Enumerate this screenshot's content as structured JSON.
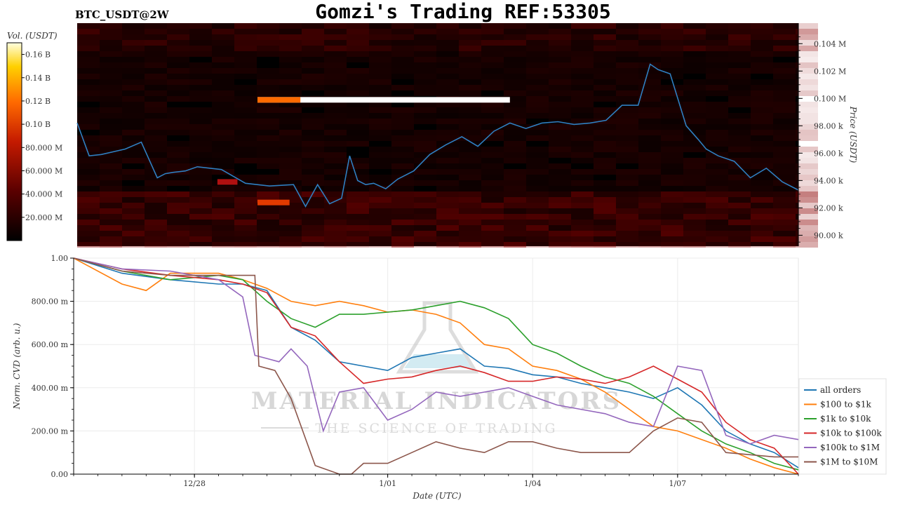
{
  "header": {
    "title": "Gomzi's Trading REF:53305",
    "symbol": "BTC_USDT@2W"
  },
  "watermark": {
    "line1": "MATERIAL INDICATORS",
    "line2": "THE SCIENCE OF TRADING"
  },
  "colors": {
    "price_line": "#2f7fc1",
    "heatmap_dark": "#000000",
    "heatmap_red": "#8b0000",
    "heatmap_hot": "#ff6a00",
    "heatmap_max": "#ffffff"
  },
  "chart_data": [
    {
      "type": "heatmap",
      "title": "",
      "colorbar_label": "Vol. (USDT)",
      "colorbar_ticks": [
        "20.000 M",
        "40.000 M",
        "60.000 M",
        "80.000 M",
        "0.10 B",
        "0.12 B",
        "0.14 B",
        "0.16 B"
      ],
      "colorbar_values": [
        20000000,
        40000000,
        60000000,
        80000000,
        100000000,
        120000000,
        140000000,
        160000000
      ],
      "colorbar_range": [
        0,
        170000000
      ],
      "ylabel": "Price (USDT)",
      "y_ticks": [
        "90.00 k",
        "92.00 k",
        "94.00 k",
        "96.00 k",
        "98.00 k",
        "0.100 M",
        "0.102 M",
        "0.104 M"
      ],
      "y_tick_values": [
        90000,
        92000,
        94000,
        96000,
        98000,
        100000,
        102000,
        104000
      ],
      "ylim": [
        89200,
        105500
      ],
      "xlim": [
        "2024-12-25T12:00",
        "2025-01-09T12:00"
      ],
      "price_series": {
        "x": [
          "2024-12-25T12:00",
          "2024-12-25T18:00",
          "2024-12-26T00:00",
          "2024-12-26T12:00",
          "2024-12-26T20:00",
          "2024-12-27T04:00",
          "2024-12-27T08:00",
          "2024-12-27T12:00",
          "2024-12-27T18:00",
          "2024-12-28T00:00",
          "2024-12-28T12:00",
          "2024-12-29T00:00",
          "2024-12-29T12:00",
          "2024-12-30T00:00",
          "2024-12-30T06:00",
          "2024-12-30T12:00",
          "2024-12-30T18:00",
          "2024-12-31T00:00",
          "2024-12-31T04:00",
          "2024-12-31T08:00",
          "2024-12-31T12:00",
          "2024-12-31T16:00",
          "2024-12-31T22:00",
          "2025-01-01T04:00",
          "2025-01-01T12:00",
          "2025-01-01T20:00",
          "2025-01-02T04:00",
          "2025-01-02T12:00",
          "2025-01-02T20:00",
          "2025-01-03T04:00",
          "2025-01-03T12:00",
          "2025-01-03T20:00",
          "2025-01-04T04:00",
          "2025-01-04T12:00",
          "2025-01-04T20:00",
          "2025-01-05T04:00",
          "2025-01-05T12:00",
          "2025-01-05T20:00",
          "2025-01-06T04:00",
          "2025-01-06T10:00",
          "2025-01-06T14:00",
          "2025-01-06T20:00",
          "2025-01-07T04:00",
          "2025-01-07T10:00",
          "2025-01-07T14:00",
          "2025-01-07T20:00",
          "2025-01-08T04:00",
          "2025-01-08T12:00",
          "2025-01-08T20:00",
          "2025-01-09T04:00",
          "2025-01-09T12:00"
        ],
        "y": [
          98200,
          95800,
          95900,
          96300,
          96800,
          94200,
          94500,
          94600,
          94700,
          95000,
          94800,
          93800,
          93600,
          93700,
          92100,
          93700,
          92300,
          92700,
          95800,
          94000,
          93700,
          93800,
          93400,
          94100,
          94700,
          95900,
          96600,
          97200,
          96500,
          97600,
          98200,
          97800,
          98200,
          98300,
          98100,
          98200,
          98400,
          99500,
          99500,
          102500,
          102100,
          101800,
          98000,
          97000,
          96300,
          95800,
          95400,
          94200,
          94900,
          93900,
          93300
        ]
      },
      "heat_bands": [
        {
          "price_low": 99900,
          "price_high": 100100,
          "x_start": "2024-12-29T06:00",
          "x_end": "2025-01-03T12:00",
          "intensity": 1.0
        },
        {
          "price_low": 92400,
          "price_high": 92600,
          "x_start": "2024-12-29T06:00",
          "x_end": "2024-12-29T22:00",
          "intensity": 0.55
        },
        {
          "price_low": 93900,
          "price_high": 94100,
          "x_start": "2024-12-28T10:00",
          "x_end": "2024-12-28T20:00",
          "intensity": 0.4
        }
      ]
    },
    {
      "type": "line",
      "title": "",
      "xlabel": "Date (UTC)",
      "ylabel": "Norm. CVD (arb. u.)",
      "x_ticks": [
        "12/28",
        "1/01",
        "1/04",
        "1/07"
      ],
      "x_tick_values": [
        "2024-12-28T00:00",
        "2025-01-01T00:00",
        "2025-01-04T00:00",
        "2025-01-07T00:00"
      ],
      "y_ticks": [
        "0.00",
        "200.00 m",
        "400.00 m",
        "600.00 m",
        "800.00 m",
        "1.00"
      ],
      "y_tick_values": [
        0,
        0.2,
        0.4,
        0.6,
        0.8,
        1.0
      ],
      "ylim": [
        0,
        1.0
      ],
      "xlim": [
        "2024-12-25T12:00",
        "2025-01-09T12:00"
      ],
      "grid": true,
      "legend": "right",
      "series": [
        {
          "name": "all orders",
          "color": "#1f77b4",
          "x": [
            "2024-12-25T12:00",
            "2024-12-26T12:00",
            "2024-12-27T12:00",
            "2024-12-28T12:00",
            "2024-12-29T00:00",
            "2024-12-29T12:00",
            "2024-12-30T00:00",
            "2024-12-30T12:00",
            "2024-12-31T00:00",
            "2024-12-31T12:00",
            "2025-01-01T00:00",
            "2025-01-01T12:00",
            "2025-01-02T00:00",
            "2025-01-02T12:00",
            "2025-01-03T00:00",
            "2025-01-03T12:00",
            "2025-01-04T00:00",
            "2025-01-04T12:00",
            "2025-01-05T00:00",
            "2025-01-05T12:00",
            "2025-01-06T00:00",
            "2025-01-06T12:00",
            "2025-01-07T00:00",
            "2025-01-07T12:00",
            "2025-01-08T00:00",
            "2025-01-08T12:00",
            "2025-01-09T00:00",
            "2025-01-09T12:00"
          ],
          "y": [
            1.0,
            0.93,
            0.9,
            0.88,
            0.88,
            0.85,
            0.68,
            0.62,
            0.52,
            0.5,
            0.48,
            0.54,
            0.56,
            0.58,
            0.5,
            0.49,
            0.46,
            0.45,
            0.42,
            0.4,
            0.38,
            0.35,
            0.4,
            0.32,
            0.2,
            0.14,
            0.1,
            0.03
          ]
        },
        {
          "name": "$100 to $1k",
          "color": "#ff7f0e",
          "x": [
            "2024-12-25T12:00",
            "2024-12-26T12:00",
            "2024-12-27T00:00",
            "2024-12-27T12:00",
            "2024-12-28T12:00",
            "2024-12-29T00:00",
            "2024-12-29T12:00",
            "2024-12-30T00:00",
            "2024-12-30T12:00",
            "2024-12-31T00:00",
            "2024-12-31T12:00",
            "2025-01-01T00:00",
            "2025-01-01T12:00",
            "2025-01-02T00:00",
            "2025-01-02T12:00",
            "2025-01-03T00:00",
            "2025-01-03T12:00",
            "2025-01-04T00:00",
            "2025-01-04T12:00",
            "2025-01-05T00:00",
            "2025-01-05T12:00",
            "2025-01-06T00:00",
            "2025-01-06T12:00",
            "2025-01-07T00:00",
            "2025-01-07T12:00",
            "2025-01-08T00:00",
            "2025-01-08T12:00",
            "2025-01-09T00:00",
            "2025-01-09T12:00"
          ],
          "y": [
            1.0,
            0.88,
            0.85,
            0.93,
            0.93,
            0.9,
            0.86,
            0.8,
            0.78,
            0.8,
            0.78,
            0.75,
            0.76,
            0.74,
            0.7,
            0.6,
            0.58,
            0.5,
            0.48,
            0.44,
            0.38,
            0.3,
            0.22,
            0.2,
            0.16,
            0.12,
            0.07,
            0.03,
            0.0
          ]
        },
        {
          "name": "$1k to $10k",
          "color": "#2ca02c",
          "x": [
            "2024-12-25T12:00",
            "2024-12-26T12:00",
            "2024-12-27T12:00",
            "2024-12-28T12:00",
            "2024-12-29T00:00",
            "2024-12-29T12:00",
            "2024-12-30T00:00",
            "2024-12-30T12:00",
            "2024-12-31T00:00",
            "2024-12-31T12:00",
            "2025-01-01T00:00",
            "2025-01-01T12:00",
            "2025-01-02T00:00",
            "2025-01-02T12:00",
            "2025-01-03T00:00",
            "2025-01-03T12:00",
            "2025-01-04T00:00",
            "2025-01-04T12:00",
            "2025-01-05T00:00",
            "2025-01-05T12:00",
            "2025-01-06T00:00",
            "2025-01-06T12:00",
            "2025-01-07T00:00",
            "2025-01-07T12:00",
            "2025-01-08T00:00",
            "2025-01-08T12:00",
            "2025-01-09T00:00",
            "2025-01-09T12:00"
          ],
          "y": [
            1.0,
            0.94,
            0.9,
            0.92,
            0.9,
            0.8,
            0.72,
            0.68,
            0.74,
            0.74,
            0.75,
            0.76,
            0.78,
            0.8,
            0.77,
            0.72,
            0.6,
            0.56,
            0.5,
            0.45,
            0.42,
            0.36,
            0.28,
            0.2,
            0.14,
            0.1,
            0.05,
            0.02
          ]
        },
        {
          "name": "$10k to $100k",
          "color": "#d62728",
          "x": [
            "2024-12-25T12:00",
            "2024-12-26T12:00",
            "2024-12-27T12:00",
            "2024-12-28T12:00",
            "2024-12-29T00:00",
            "2024-12-29T12:00",
            "2024-12-30T00:00",
            "2024-12-30T12:00",
            "2024-12-31T00:00",
            "2024-12-31T12:00",
            "2025-01-01T00:00",
            "2025-01-01T12:00",
            "2025-01-02T00:00",
            "2025-01-02T12:00",
            "2025-01-03T00:00",
            "2025-01-03T12:00",
            "2025-01-04T00:00",
            "2025-01-04T12:00",
            "2025-01-05T00:00",
            "2025-01-05T12:00",
            "2025-01-06T00:00",
            "2025-01-06T12:00",
            "2025-01-07T00:00",
            "2025-01-07T12:00",
            "2025-01-08T00:00",
            "2025-01-08T12:00",
            "2025-01-09T00:00",
            "2025-01-09T12:00"
          ],
          "y": [
            1.0,
            0.95,
            0.92,
            0.9,
            0.88,
            0.84,
            0.68,
            0.64,
            0.52,
            0.42,
            0.44,
            0.45,
            0.48,
            0.5,
            0.47,
            0.43,
            0.43,
            0.45,
            0.44,
            0.42,
            0.45,
            0.5,
            0.44,
            0.38,
            0.24,
            0.16,
            0.12,
            0.0
          ]
        },
        {
          "name": "$100k to $1M",
          "color": "#9467bd",
          "x": [
            "2024-12-25T12:00",
            "2024-12-26T12:00",
            "2024-12-27T12:00",
            "2024-12-28T12:00",
            "2024-12-29T00:00",
            "2024-12-29T06:00",
            "2024-12-29T18:00",
            "2024-12-30T00:00",
            "2024-12-30T08:00",
            "2024-12-30T16:00",
            "2024-12-31T00:00",
            "2024-12-31T12:00",
            "2025-01-01T00:00",
            "2025-01-01T12:00",
            "2025-01-02T00:00",
            "2025-01-02T12:00",
            "2025-01-03T00:00",
            "2025-01-03T12:00",
            "2025-01-04T00:00",
            "2025-01-04T12:00",
            "2025-01-05T00:00",
            "2025-01-05T12:00",
            "2025-01-06T00:00",
            "2025-01-06T12:00",
            "2025-01-07T00:00",
            "2025-01-07T12:00",
            "2025-01-08T00:00",
            "2025-01-08T12:00",
            "2025-01-09T00:00",
            "2025-01-09T12:00"
          ],
          "y": [
            1.0,
            0.95,
            0.94,
            0.9,
            0.82,
            0.55,
            0.52,
            0.58,
            0.5,
            0.2,
            0.38,
            0.4,
            0.25,
            0.3,
            0.38,
            0.36,
            0.38,
            0.4,
            0.36,
            0.32,
            0.3,
            0.28,
            0.24,
            0.22,
            0.5,
            0.48,
            0.18,
            0.14,
            0.18,
            0.16
          ]
        },
        {
          "name": "$1M to $10M",
          "color": "#8c564b",
          "x": [
            "2024-12-25T12:00",
            "2024-12-26T12:00",
            "2024-12-27T12:00",
            "2024-12-28T12:00",
            "2024-12-29T06:00",
            "2024-12-29T08:00",
            "2024-12-29T16:00",
            "2024-12-30T00:00",
            "2024-12-30T12:00",
            "2024-12-31T00:00",
            "2024-12-31T06:00",
            "2024-12-31T12:00",
            "2025-01-01T00:00",
            "2025-01-01T12:00",
            "2025-01-02T00:00",
            "2025-01-02T12:00",
            "2025-01-03T00:00",
            "2025-01-03T12:00",
            "2025-01-04T00:00",
            "2025-01-04T12:00",
            "2025-01-05T00:00",
            "2025-01-05T12:00",
            "2025-01-06T00:00",
            "2025-01-06T12:00",
            "2025-01-07T00:00",
            "2025-01-07T12:00",
            "2025-01-08T00:00",
            "2025-01-08T12:00",
            "2025-01-09T00:00",
            "2025-01-09T12:00"
          ],
          "y": [
            1.0,
            0.94,
            0.92,
            0.92,
            0.92,
            0.5,
            0.48,
            0.35,
            0.04,
            0.0,
            0.0,
            0.05,
            0.05,
            0.1,
            0.15,
            0.12,
            0.1,
            0.15,
            0.15,
            0.12,
            0.1,
            0.1,
            0.1,
            0.2,
            0.26,
            0.24,
            0.1,
            0.09,
            0.08,
            0.08
          ]
        }
      ]
    }
  ]
}
